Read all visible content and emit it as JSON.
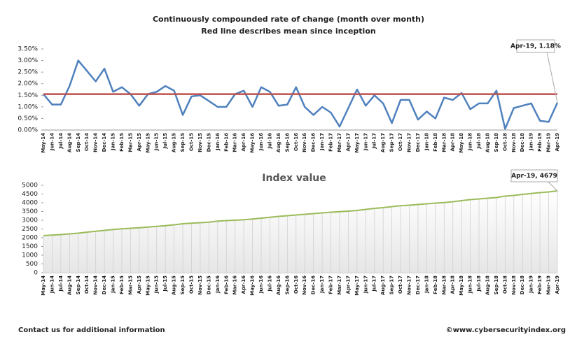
{
  "chart_data": [
    {
      "type": "line",
      "title": "Continuously compounded rate of change (month over month)",
      "subtitle": "Red line describes mean since inception",
      "annotation": "Apr-19, 1.18%",
      "categories": [
        "May-14",
        "Jun-14",
        "Jul-14",
        "Aug-14",
        "Sep-14",
        "Oct-14",
        "Nov-14",
        "Dec-14",
        "Jan-15",
        "Feb-15",
        "Mar-15",
        "Apr-15",
        "May-15",
        "Jun-15",
        "Jul-15",
        "Aug-15",
        "Sep-15",
        "Oct-15",
        "Nov-15",
        "Dec-15",
        "Jan-16",
        "Feb-16",
        "Mar-16",
        "Apr-16",
        "May-16",
        "Jun-16",
        "Jul-16",
        "Aug-16",
        "Sep-16",
        "Oct-16",
        "Nov-16",
        "Dec-16",
        "Jan-17",
        "Feb-17",
        "Mar-17",
        "Apr-17",
        "May-17",
        "Jun-17",
        "Jul-17",
        "Aug-17",
        "Sep-17",
        "Oct-17",
        "Nov-17",
        "Dec-17",
        "Jan-18",
        "Feb-18",
        "Mar-18",
        "Apr-18",
        "May-18",
        "Jun-18",
        "Jul-18",
        "Aug-18",
        "Sep-18",
        "Oct-18",
        "Nov-18",
        "Dec-18",
        "Jan-19",
        "Feb-19",
        "Mar-19",
        "Apr-19"
      ],
      "series": [
        {
          "color": "#4f81bd",
          "values": [
            1.55,
            1.1,
            1.1,
            1.9,
            3.0,
            2.55,
            2.1,
            2.65,
            1.65,
            1.85,
            1.55,
            1.05,
            1.55,
            1.65,
            1.9,
            1.7,
            0.65,
            1.45,
            1.5,
            1.25,
            1.0,
            1.0,
            1.55,
            1.7,
            1.0,
            1.85,
            1.65,
            1.05,
            1.1,
            1.85,
            1.0,
            0.65,
            1.0,
            0.75,
            0.15,
            0.95,
            1.75,
            1.05,
            1.5,
            1.15,
            0.3,
            1.3,
            1.3,
            0.45,
            0.8,
            0.5,
            1.4,
            1.3,
            1.6,
            0.9,
            1.15,
            1.15,
            1.7,
            0.05,
            0.95,
            1.05,
            1.15,
            0.4,
            0.35,
            1.18
          ]
        },
        {
          "color": "#c0504d",
          "values": [
            1.55,
            1.55,
            1.55,
            1.55,
            1.55,
            1.55,
            1.55,
            1.55,
            1.55,
            1.55,
            1.55,
            1.55,
            1.55,
            1.55,
            1.55,
            1.55,
            1.55,
            1.55,
            1.55,
            1.55,
            1.55,
            1.55,
            1.55,
            1.55,
            1.55,
            1.55,
            1.55,
            1.55,
            1.55,
            1.55,
            1.55,
            1.55,
            1.55,
            1.55,
            1.55,
            1.55,
            1.55,
            1.55,
            1.55,
            1.55,
            1.55,
            1.55,
            1.55,
            1.55,
            1.55,
            1.55,
            1.55,
            1.55,
            1.55,
            1.55,
            1.55,
            1.55,
            1.55,
            1.55,
            1.55,
            1.55,
            1.55,
            1.55,
            1.55,
            1.55
          ]
        }
      ],
      "ylim": [
        0,
        3.5
      ],
      "yticks": [
        {
          "value": 0,
          "label": "0.00%"
        },
        {
          "value": 0.5,
          "label": "0.50%"
        },
        {
          "value": 1,
          "label": "1.00%"
        },
        {
          "value": 1.5,
          "label": "1.50%"
        },
        {
          "value": 2,
          "label": "2.00%"
        },
        {
          "value": 2.5,
          "label": "2.50%"
        },
        {
          "value": 3,
          "label": "3.00%"
        },
        {
          "value": 3.5,
          "label": "3.50%"
        }
      ],
      "grid": false
    },
    {
      "type": "area",
      "title": "Index value",
      "annotation": "Apr-19, 4679",
      "categories": [
        "May-14",
        "Jun-14",
        "Jul-14",
        "Aug-14",
        "Sep-14",
        "Oct-14",
        "Nov-14",
        "Dec-14",
        "Jan-15",
        "Feb-15",
        "Mar-15",
        "Apr-15",
        "May-15",
        "Jun-15",
        "Jul-15",
        "Aug-15",
        "Sep-15",
        "Oct-15",
        "Nov-15",
        "Dec-15",
        "Jan-16",
        "Feb-16",
        "Mar-16",
        "Apr-16",
        "May-16",
        "Jun-16",
        "Jul-16",
        "Aug-16",
        "Sep-16",
        "Oct-16",
        "Nov-16",
        "Dec-16",
        "Jan-17",
        "Feb-17",
        "Mar-17",
        "Apr-17",
        "May-17",
        "Jun-17",
        "Jul-17",
        "Aug-17",
        "Sep-17",
        "Oct-17",
        "Nov-17",
        "Dec-17",
        "Jan-18",
        "Feb-18",
        "Mar-18",
        "Apr-18",
        "May-18",
        "Jun-18",
        "Jul-18",
        "Aug-18",
        "Sep-18",
        "Oct-18",
        "Nov-18",
        "Dec-18",
        "Jan-19",
        "Feb-19",
        "Mar-19",
        "Apr-19"
      ],
      "series": [
        {
          "color": "#9bbb59",
          "values": [
            2120,
            2150,
            2180,
            2220,
            2260,
            2320,
            2370,
            2420,
            2470,
            2510,
            2540,
            2570,
            2610,
            2650,
            2690,
            2740,
            2800,
            2830,
            2860,
            2890,
            2950,
            2980,
            3000,
            3030,
            3070,
            3120,
            3170,
            3220,
            3260,
            3300,
            3340,
            3380,
            3420,
            3460,
            3490,
            3520,
            3560,
            3620,
            3680,
            3720,
            3780,
            3830,
            3860,
            3900,
            3940,
            3980,
            4010,
            4060,
            4120,
            4180,
            4220,
            4260,
            4300,
            4380,
            4420,
            4480,
            4530,
            4580,
            4620,
            4679
          ]
        }
      ],
      "ylim": [
        0,
        5000
      ],
      "yticks": [
        0,
        500,
        1000,
        1500,
        2000,
        2500,
        3000,
        3500,
        4000,
        4500,
        5000
      ],
      "grid": false,
      "drop_lines": true
    }
  ],
  "footer": {
    "contact": "Contact us for additional information",
    "copyright": "©www.cybersecurityindex.org"
  }
}
